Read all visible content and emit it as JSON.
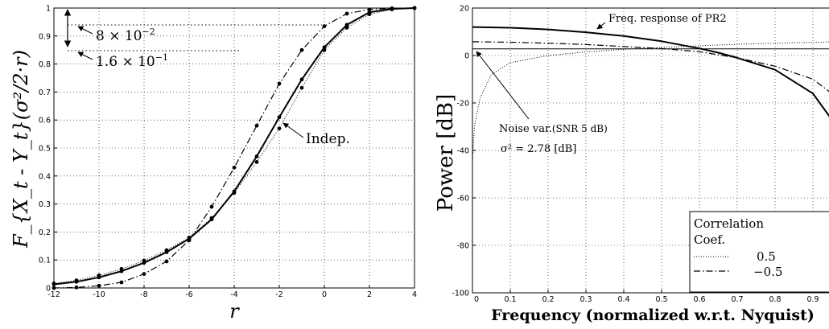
{
  "chart_data": [
    {
      "type": "line",
      "xlabel": "r",
      "ylabel": "F_{X_t - Y_t}(σ²/2·r)",
      "xlim": [
        -12,
        4
      ],
      "ylim": [
        0,
        1
      ],
      "xticks": [
        "-12",
        "-10",
        "-8",
        "-6",
        "-4",
        "-2",
        "0",
        "2",
        "4"
      ],
      "yticks": [
        "0",
        "0.1",
        "0.2",
        "0.3",
        "0.4",
        "0.5",
        "0.6",
        "0.7",
        "0.8",
        "0.9",
        "1"
      ],
      "grid": true,
      "series": [
        {
          "style": "solid-dots",
          "x": [
            -12,
            -11,
            -10,
            -9,
            -8,
            -7,
            -6,
            -5,
            -4,
            -3,
            -2,
            -1,
            0,
            1,
            2,
            3,
            4
          ],
          "values": [
            0.013,
            0.022,
            0.038,
            0.06,
            0.09,
            0.128,
            0.176,
            0.245,
            0.345,
            0.47,
            0.61,
            0.745,
            0.86,
            0.94,
            0.985,
            0.997,
            1.0
          ]
        },
        {
          "style": "dotted-dots",
          "x": [
            -12,
            -11,
            -10,
            -9,
            -8,
            -7,
            -6,
            -5,
            -4,
            -3,
            -2,
            -1,
            0,
            1,
            2,
            3,
            4
          ],
          "values": [
            0.016,
            0.027,
            0.045,
            0.068,
            0.098,
            0.135,
            0.18,
            0.25,
            0.34,
            0.45,
            0.57,
            0.715,
            0.85,
            0.93,
            0.978,
            0.995,
            1.0
          ]
        },
        {
          "style": "dashdot-dots",
          "x": [
            -12,
            -11,
            -10,
            -9,
            -8,
            -7,
            -6,
            -5,
            -4,
            -3,
            -2,
            -1,
            0,
            1,
            2,
            3,
            4
          ],
          "values": [
            0.0,
            0.002,
            0.008,
            0.02,
            0.05,
            0.095,
            0.17,
            0.29,
            0.43,
            0.58,
            0.73,
            0.85,
            0.935,
            0.98,
            0.995,
            0.999,
            1.0
          ]
        }
      ],
      "annotations": {
        "upper": "8 × 10",
        "upper_exp": "−2",
        "lower": "1.6 × 10",
        "lower_exp": "−1",
        "indep": "Indep."
      }
    },
    {
      "type": "line",
      "xlabel": "Frequency (normalized w.r.t. Nyquist)",
      "ylabel": "Power [dB]",
      "xlim": [
        0,
        1
      ],
      "ylim": [
        -100,
        20
      ],
      "xticks": [
        "0",
        "0.1",
        "0.2",
        "0.3",
        "0.4",
        "0.5",
        "0.6",
        "0.7",
        "0.8",
        "0.9"
      ],
      "yticks": [
        "20",
        "0",
        "-20",
        "-40",
        "-60",
        "-80",
        "-100"
      ],
      "grid": true,
      "series": [
        {
          "name": "Freq. response of PR2",
          "style": "solid",
          "x": [
            0,
            0.1,
            0.2,
            0.3,
            0.4,
            0.5,
            0.6,
            0.65,
            0.7,
            0.8,
            0.9,
            0.95,
            0.98,
            1.0
          ],
          "values": [
            12,
            11.7,
            11,
            9.8,
            8.2,
            6,
            3,
            1.2,
            -1,
            -6,
            -16,
            -27,
            -45,
            -65
          ]
        },
        {
          "name": "0.5",
          "style": "dotted",
          "x": [
            0,
            0.005,
            0.02,
            0.05,
            0.1,
            0.2,
            0.3,
            0.4,
            0.5,
            0.6,
            0.7,
            0.8,
            0.9,
            1.0
          ],
          "values": [
            -45,
            -30,
            -18,
            -8,
            -3,
            0,
            1.5,
            2.6,
            3.4,
            4.1,
            4.7,
            5.2,
            5.6,
            5.8
          ]
        },
        {
          "name": "−0.5",
          "style": "dashdot",
          "x": [
            0,
            0.1,
            0.2,
            0.3,
            0.4,
            0.5,
            0.6,
            0.7,
            0.8,
            0.9,
            0.95,
            1.0
          ],
          "values": [
            5.8,
            5.6,
            5.2,
            4.6,
            3.8,
            2.9,
            1.6,
            -1,
            -4.5,
            -10,
            -16,
            -30
          ]
        },
        {
          "name": "Noise",
          "style": "solid-thin",
          "x": [
            0,
            1
          ],
          "values": [
            2.78,
            2.78
          ]
        }
      ],
      "annotations": {
        "pr2": "Freq. response of PR2",
        "noise_line1_a": "Noise var.",
        "noise_line1_b": "(SNR 5 dB)",
        "noise_line2": "σ² = 2.78 [dB]"
      },
      "legend": {
        "title_line1": "Correlation",
        "title_line2": "Coef.",
        "entries": [
          "0.5",
          "−0.5"
        ],
        "placement": "bottom-right"
      }
    }
  ]
}
